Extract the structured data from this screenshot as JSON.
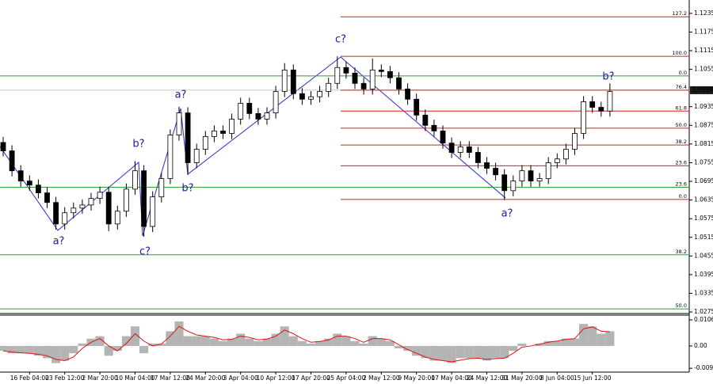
{
  "chart_data": [
    {
      "type": "candlestick",
      "categories": [
        null,
        null,
        null,
        "16 Feb 04:00",
        null,
        null,
        null,
        "23 Feb 12:00",
        null,
        null,
        null,
        "2 Mar 20:00",
        null,
        null,
        null,
        "10 Mar 04:00",
        null,
        null,
        null,
        "17 Mar 12:00",
        null,
        null,
        null,
        "24 Mar 20:00",
        null,
        null,
        null,
        "3 Apr 04:00",
        null,
        null,
        null,
        "10 Apr 12:00",
        null,
        null,
        null,
        "17 Apr 20:00",
        null,
        null,
        null,
        "25 Apr 04:00",
        null,
        null,
        null,
        "2 May 12:00",
        null,
        null,
        null,
        "9 May 20:00",
        null,
        null,
        null,
        "17 May 04:00",
        null,
        null,
        null,
        "24 May 12:00",
        null,
        null,
        null,
        "31 May 20:00",
        null,
        null,
        null,
        "8 Jun 04:00",
        null,
        null,
        null,
        "15 Jun 12:00",
        null,
        null
      ],
      "open": [
        1.082,
        1.0793,
        1.0729,
        1.0696,
        1.0683,
        1.0658,
        1.0627,
        1.0558,
        1.0594,
        1.0609,
        1.0619,
        1.064,
        1.066,
        1.0558,
        1.0599,
        1.067,
        1.0729,
        1.055,
        1.0645,
        1.0704,
        1.0844,
        1.0915,
        1.0755,
        1.0798,
        1.0839,
        1.0857,
        1.0849,
        1.0895,
        1.0946,
        1.0913,
        1.0895,
        1.0915,
        1.0984,
        1.1053,
        1.0977,
        1.0959,
        1.0967,
        1.0984,
        1.101,
        1.1061,
        1.1043,
        1.101,
        1.0992,
        1.1053,
        1.1048,
        1.1028,
        1.0992,
        1.0959,
        1.0908,
        1.0875,
        1.0857,
        1.0818,
        1.0788,
        1.0806,
        1.0788,
        1.0755,
        1.0737,
        1.0716,
        1.0665,
        1.0696,
        1.0729,
        1.0696,
        1.0704,
        1.0755,
        1.0767,
        1.0798,
        1.0849,
        1.0951,
        1.0933,
        1.0921
      ],
      "high": [
        1.0838,
        1.0811,
        1.0747,
        1.0714,
        1.0701,
        1.0676,
        1.0645,
        1.0612,
        1.0627,
        1.0637,
        1.0658,
        1.0678,
        1.0678,
        1.0617,
        1.0688,
        1.076,
        1.0747,
        1.0663,
        1.0722,
        1.0862,
        1.0935,
        1.0933,
        1.0816,
        1.0857,
        1.0875,
        1.0875,
        1.0913,
        1.0964,
        1.0964,
        1.0931,
        1.0933,
        1.1002,
        1.1075,
        1.1071,
        1.0995,
        1.0985,
        1.1002,
        1.1028,
        1.1097,
        1.1079,
        1.1061,
        1.1028,
        1.109,
        1.1071,
        1.1066,
        1.1046,
        1.101,
        1.0977,
        1.0926,
        1.0893,
        1.0875,
        1.0836,
        1.0824,
        1.0824,
        1.0806,
        1.0773,
        1.0755,
        1.0734,
        1.0714,
        1.0747,
        1.0747,
        1.0722,
        1.0773,
        1.0785,
        1.0816,
        1.0867,
        1.0969,
        1.0969,
        1.0951,
        1.101
      ],
      "low": [
        1.0775,
        1.0711,
        1.0678,
        1.0665,
        1.064,
        1.0609,
        1.054,
        1.054,
        1.0576,
        1.0591,
        1.0601,
        1.0622,
        1.0535,
        1.054,
        1.0581,
        1.0652,
        1.0517,
        1.0532,
        1.0627,
        1.0686,
        1.0826,
        1.0716,
        1.0737,
        1.078,
        1.0821,
        1.0831,
        1.0831,
        1.0877,
        1.0895,
        1.0877,
        1.0877,
        1.0897,
        1.0966,
        1.0959,
        1.0941,
        1.0941,
        1.0949,
        1.0966,
        1.0992,
        1.1025,
        1.0992,
        1.0974,
        1.0974,
        1.103,
        1.101,
        1.0974,
        1.0941,
        1.089,
        1.0857,
        1.0839,
        1.08,
        1.077,
        1.077,
        1.077,
        1.0737,
        1.0719,
        1.0698,
        1.0635,
        1.0647,
        1.0678,
        1.0678,
        1.0678,
        1.0686,
        1.0737,
        1.0749,
        1.078,
        1.0831,
        1.0915,
        1.0903,
        1.0903
      ],
      "close": [
        1.0793,
        1.0729,
        1.0696,
        1.0683,
        1.0658,
        1.0627,
        1.0558,
        1.0594,
        1.0609,
        1.0619,
        1.064,
        1.066,
        1.0558,
        1.0599,
        1.067,
        1.0729,
        1.055,
        1.0645,
        1.0704,
        1.0844,
        1.0915,
        1.0755,
        1.0798,
        1.0839,
        1.0857,
        1.0849,
        1.0895,
        1.0946,
        1.0913,
        1.0895,
        1.0915,
        1.0984,
        1.1053,
        1.0977,
        1.0959,
        1.0967,
        1.0984,
        1.101,
        1.1061,
        1.1043,
        1.101,
        1.0992,
        1.1053,
        1.1048,
        1.1028,
        1.0992,
        1.0959,
        1.0908,
        1.0875,
        1.0857,
        1.0818,
        1.0788,
        1.0806,
        1.0788,
        1.0755,
        1.0737,
        1.0716,
        1.0665,
        1.0696,
        1.0729,
        1.0696,
        1.0704,
        1.0755,
        1.0767,
        1.0798,
        1.0849,
        1.0951,
        1.0933,
        1.0921,
        1.0984
      ],
      "up_color": "#ffffff",
      "down_color": "#000000",
      "ylim": [
        1.027,
        1.1278
      ],
      "yticks": [
        1.1235,
        1.1175,
        1.1115,
        1.1055,
        1.0935,
        1.0875,
        1.0815,
        1.0755,
        1.0695,
        1.0635,
        1.0575,
        1.0515,
        1.0455,
        1.0395,
        1.0335,
        1.0275
      ],
      "last_price": 1.0988,
      "fib_levels": {
        "color": "#d42020",
        "levels": [
          {
            "label": "127.2",
            "price": 1.1224
          },
          {
            "label": "100.0",
            "price": 1.1097
          },
          {
            "label": "76.4",
            "price": 1.0988
          },
          {
            "label": "61.8",
            "price": 1.0921
          },
          {
            "label": "50.0",
            "price": 1.0866
          },
          {
            "label": "38.2",
            "price": 1.0812
          },
          {
            "label": "23.6",
            "price": 1.0745
          },
          {
            "label": "0.0",
            "price": 1.0637
          }
        ]
      },
      "fib_levels_2": {
        "color": "#2e9e2e",
        "levels": [
          {
            "label": "0.0",
            "price": 1.1034
          },
          {
            "label": "23.6",
            "price": 1.0676
          },
          {
            "label": "38.2",
            "price": 1.0459
          },
          {
            "label": "50.0",
            "price": 1.0285
          }
        ]
      },
      "annotations": [
        "a?",
        "c?",
        "b?",
        "a?",
        "b?",
        "c?",
        "a?",
        "b?"
      ]
    },
    {
      "type": "bar",
      "values": [
        -0.002,
        -0.003,
        -0.003,
        -0.003,
        -0.004,
        -0.005,
        -0.007,
        -0.006,
        -0.003,
        0.001,
        0.003,
        0.004,
        -0.004,
        -0.002,
        0.004,
        0.008,
        -0.003,
        0.001,
        0.001,
        0.006,
        0.01,
        0.004,
        0.004,
        0.004,
        0.003,
        0.002,
        0.003,
        0.005,
        0.003,
        0.002,
        0.003,
        0.005,
        0.008,
        0.004,
        0.002,
        0.001,
        0.002,
        0.003,
        0.005,
        0.004,
        0.002,
        0.001,
        0.004,
        0.003,
        0.002,
        -0.001,
        -0.002,
        -0.004,
        -0.005,
        -0.006,
        -0.006,
        -0.007,
        -0.005,
        -0.005,
        -0.005,
        -0.006,
        -0.005,
        -0.005,
        -0.002,
        0.001,
        0.0,
        0.001,
        0.002,
        0.002,
        0.003,
        0.003,
        0.009,
        0.008,
        0.005,
        0.006
      ],
      "color": "#b4b4b4",
      "line": {
        "color": "#e01010",
        "values": [
          -0.002,
          -0.0025,
          -0.0028,
          -0.003,
          -0.0034,
          -0.004,
          -0.0055,
          -0.006,
          -0.0045,
          -0.001,
          0.0015,
          0.003,
          0.0,
          -0.002,
          0.001,
          0.005,
          0.002,
          0.0,
          0.0008,
          0.004,
          0.008,
          0.006,
          0.0045,
          0.004,
          0.0035,
          0.0025,
          0.0027,
          0.004,
          0.0035,
          0.0025,
          0.0028,
          0.004,
          0.0065,
          0.005,
          0.003,
          0.0015,
          0.0018,
          0.0025,
          0.004,
          0.004,
          0.003,
          0.0015,
          0.003,
          0.003,
          0.0025,
          0.0005,
          -0.0015,
          -0.003,
          -0.0045,
          -0.0055,
          -0.006,
          -0.0065,
          -0.0058,
          -0.0052,
          -0.005,
          -0.0055,
          -0.0052,
          -0.005,
          -0.003,
          -0.0005,
          0.0,
          0.0007,
          0.0015,
          0.002,
          0.0027,
          0.003,
          0.007,
          0.0078,
          0.006,
          0.0058
        ]
      },
      "ylim": [
        -0.0107,
        0.0126
      ],
      "yticks": [
        0.01065,
        {
          "value": 0,
          "label": "0.00"
        },
        -0.00913
      ]
    }
  ]
}
